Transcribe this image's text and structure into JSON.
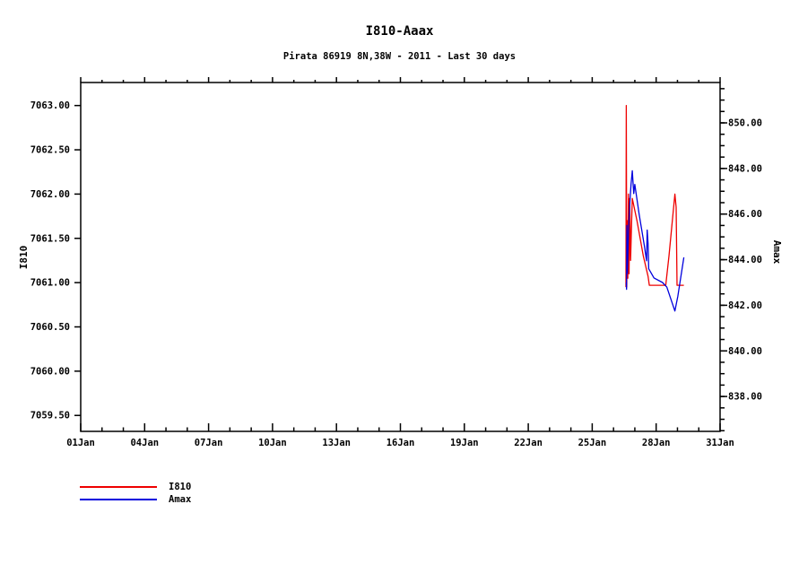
{
  "chart_data": {
    "type": "line",
    "title": "I810-Aaax",
    "subtitle": "Pirata 86919 8N,38W - 2011 - Last 30 days",
    "grid": false,
    "legend_position": "bottom-left",
    "x_axis": {
      "unit": "day-of-January",
      "min": 1,
      "max": 31,
      "minor_step": 1,
      "ticks": [
        {
          "day": 1,
          "label": "01Jan"
        },
        {
          "day": 4,
          "label": "04Jan"
        },
        {
          "day": 7,
          "label": "07Jan"
        },
        {
          "day": 10,
          "label": "10Jan"
        },
        {
          "day": 13,
          "label": "13Jan"
        },
        {
          "day": 16,
          "label": "16Jan"
        },
        {
          "day": 19,
          "label": "19Jan"
        },
        {
          "day": 22,
          "label": "22Jan"
        },
        {
          "day": 25,
          "label": "25Jan"
        },
        {
          "day": 28,
          "label": "28Jan"
        },
        {
          "day": 31,
          "label": "31Jan"
        }
      ]
    },
    "left_axis": {
      "label": "I810",
      "min": 7059.32,
      "max": 7063.26,
      "ticks": [
        {
          "v": 7063.0,
          "label": "7063.00"
        },
        {
          "v": 7062.5,
          "label": "7062.50"
        },
        {
          "v": 7062.0,
          "label": "7062.00"
        },
        {
          "v": 7061.5,
          "label": "7061.50"
        },
        {
          "v": 7061.0,
          "label": "7061.00"
        },
        {
          "v": 7060.5,
          "label": "7060.50"
        },
        {
          "v": 7060.0,
          "label": "7060.00"
        },
        {
          "v": 7059.5,
          "label": "7059.50"
        }
      ]
    },
    "right_axis": {
      "label": "Amax",
      "min": 836.47,
      "max": 851.77,
      "minor_step": 0.5,
      "ticks": [
        {
          "v": 850.0,
          "label": "850.00"
        },
        {
          "v": 848.0,
          "label": "848.00"
        },
        {
          "v": 846.0,
          "label": "846.00"
        },
        {
          "v": 844.0,
          "label": "844.00"
        },
        {
          "v": 842.0,
          "label": "842.00"
        },
        {
          "v": 840.0,
          "label": "840.00"
        },
        {
          "v": 838.0,
          "label": "838.00"
        }
      ]
    },
    "series": [
      {
        "name": "I810",
        "color": "#ee0000",
        "axis": "left",
        "points": [
          [
            26.58,
            7060.95
          ],
          [
            26.6,
            7063.0
          ],
          [
            26.62,
            7060.95
          ],
          [
            26.65,
            7061.7
          ],
          [
            26.67,
            7061.05
          ],
          [
            26.7,
            7062.0
          ],
          [
            26.73,
            7061.1
          ],
          [
            26.76,
            7061.95
          ],
          [
            26.8,
            7061.25
          ],
          [
            26.84,
            7061.6
          ],
          [
            26.88,
            7061.95
          ],
          [
            27.1,
            7061.7
          ],
          [
            27.4,
            7061.3
          ],
          [
            27.62,
            7061.07
          ],
          [
            27.68,
            7060.97
          ],
          [
            28.45,
            7060.97
          ],
          [
            28.6,
            7061.3
          ],
          [
            28.88,
            7062.0
          ],
          [
            28.94,
            7061.85
          ],
          [
            28.98,
            7060.97
          ],
          [
            29.3,
            7060.97
          ]
        ]
      },
      {
        "name": "Amax",
        "color": "#0000dd",
        "axis": "right",
        "points": [
          [
            26.6,
            843.0
          ],
          [
            26.61,
            842.7
          ],
          [
            26.63,
            845.5
          ],
          [
            26.65,
            843.4
          ],
          [
            26.7,
            845.2
          ],
          [
            26.76,
            846.4
          ],
          [
            26.82,
            847.3
          ],
          [
            26.88,
            847.9
          ],
          [
            26.95,
            846.9
          ],
          [
            27.0,
            847.3
          ],
          [
            27.2,
            846.0
          ],
          [
            27.45,
            844.6
          ],
          [
            27.55,
            843.95
          ],
          [
            27.58,
            845.3
          ],
          [
            27.62,
            844.7
          ],
          [
            27.65,
            843.6
          ],
          [
            27.9,
            843.2
          ],
          [
            28.3,
            843.0
          ],
          [
            28.5,
            842.8
          ],
          [
            28.88,
            841.75
          ],
          [
            29.02,
            842.4
          ],
          [
            29.3,
            844.1
          ]
        ]
      }
    ],
    "legend": [
      {
        "label": "I810"
      },
      {
        "label": "Amax"
      }
    ]
  }
}
